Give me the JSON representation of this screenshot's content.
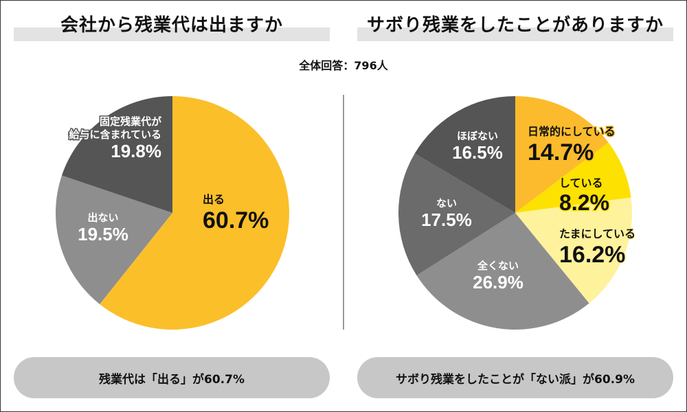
{
  "header": {
    "left_title": "会社から残業代は出ますか",
    "right_title": "サボり残業をしたことがありますか",
    "total_label": "全体回答：796人"
  },
  "summary": {
    "left": "残業代は「出る」が60.7%",
    "right": "サボり残業をしたことが「ない派」が60.9%"
  },
  "chart_data": [
    {
      "type": "pie",
      "title": "会社から残業代は出ますか",
      "start": "12 o'clock, clockwise",
      "categories": [
        "出る",
        "出ない",
        "固定残業代が給与に含まれている"
      ],
      "values": [
        60.7,
        19.5,
        19.8
      ],
      "unit": "%",
      "label_lines": [
        [
          "出る"
        ],
        [
          "出ない"
        ],
        [
          "固定残業代が",
          "給与に含まれている"
        ]
      ],
      "value_labels": [
        "60.7%",
        "19.5%",
        "19.8%"
      ],
      "colors": [
        "#fbbf2a",
        "#8e8e8e",
        "#555555"
      ],
      "label_colors": [
        "#111111",
        "#ffffff",
        "#ffffff"
      ]
    },
    {
      "type": "pie",
      "title": "サボり残業をしたことがありますか",
      "start": "12 o'clock, clockwise",
      "categories": [
        "日常的にしている",
        "している",
        "たまにしている",
        "全くない",
        "ない",
        "ほぼない"
      ],
      "values": [
        14.7,
        8.2,
        16.2,
        26.9,
        17.5,
        16.5
      ],
      "unit": "%",
      "label_lines": [
        [
          "日常的にしている"
        ],
        [
          "している"
        ],
        [
          "たまにしている"
        ],
        [
          "全くない"
        ],
        [
          "ない"
        ],
        [
          "ほぼない"
        ]
      ],
      "value_labels": [
        "14.7%",
        "8.2%",
        "16.2%",
        "26.9%",
        "17.5%",
        "16.5%"
      ],
      "colors": [
        "#fbbb2c",
        "#fde100",
        "#fff29c",
        "#8e8e8e",
        "#6b6b6b",
        "#555555"
      ],
      "label_colors": [
        "#111111",
        "#111111",
        "#111111",
        "#ffffff",
        "#ffffff",
        "#ffffff"
      ]
    }
  ]
}
